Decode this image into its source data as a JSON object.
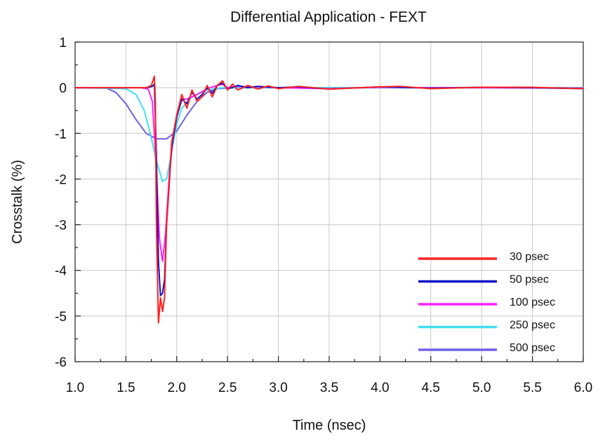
{
  "chart_data": {
    "type": "line",
    "title": "Differential Application - FEXT",
    "xlabel": "Time (nsec)",
    "ylabel": "Crosstalk (%)",
    "xlim": [
      1.0,
      6.0
    ],
    "ylim": [
      -6,
      1
    ],
    "x_ticks": [
      1.0,
      1.5,
      2.0,
      2.5,
      3.0,
      3.5,
      4.0,
      4.5,
      5.0,
      5.5,
      6.0
    ],
    "x_tick_labels": [
      "1.0",
      "1.5",
      "2.0",
      "2.5",
      "3.0",
      "3.5",
      "4.0",
      "4.5",
      "5.0",
      "5.5",
      "6.0"
    ],
    "y_ticks": [
      1,
      0,
      -1,
      -2,
      -3,
      -4,
      -5,
      -6
    ],
    "y_tick_labels": [
      "1",
      "0",
      "-1",
      "-2",
      "-3",
      "-4",
      "-5",
      "-6"
    ],
    "grid": true,
    "legend_position": "bottom-right",
    "series": [
      {
        "name": "30 psec",
        "color": "#ff2020",
        "points": [
          [
            1.0,
            0
          ],
          [
            1.7,
            0
          ],
          [
            1.75,
            0.05
          ],
          [
            1.78,
            0.25
          ],
          [
            1.79,
            -0.3
          ],
          [
            1.8,
            -3.0
          ],
          [
            1.82,
            -5.15
          ],
          [
            1.84,
            -4.6
          ],
          [
            1.86,
            -4.9
          ],
          [
            1.88,
            -4.6
          ],
          [
            1.9,
            -3.0
          ],
          [
            1.95,
            -1.2
          ],
          [
            2.0,
            -0.6
          ],
          [
            2.05,
            -0.15
          ],
          [
            2.1,
            -0.45
          ],
          [
            2.15,
            -0.05
          ],
          [
            2.2,
            -0.3
          ],
          [
            2.25,
            -0.2
          ],
          [
            2.3,
            0.05
          ],
          [
            2.35,
            -0.2
          ],
          [
            2.4,
            0.05
          ],
          [
            2.45,
            0.15
          ],
          [
            2.5,
            -0.05
          ],
          [
            2.55,
            0.08
          ],
          [
            2.6,
            -0.05
          ],
          [
            2.7,
            0.05
          ],
          [
            2.8,
            -0.03
          ],
          [
            2.9,
            0.04
          ],
          [
            3.0,
            -0.02
          ],
          [
            3.2,
            0.03
          ],
          [
            3.5,
            -0.03
          ],
          [
            4.0,
            0.02
          ],
          [
            4.2,
            0.03
          ],
          [
            4.5,
            -0.02
          ],
          [
            5.0,
            0.01
          ],
          [
            5.5,
            0.01
          ],
          [
            6.0,
            -0.02
          ]
        ]
      },
      {
        "name": "50 psec",
        "color": "#1010c8",
        "points": [
          [
            1.0,
            0
          ],
          [
            1.7,
            0
          ],
          [
            1.76,
            0.03
          ],
          [
            1.78,
            0.08
          ],
          [
            1.8,
            -1.5
          ],
          [
            1.82,
            -3.8
          ],
          [
            1.84,
            -4.55
          ],
          [
            1.86,
            -4.5
          ],
          [
            1.88,
            -4.2
          ],
          [
            1.9,
            -3.0
          ],
          [
            1.95,
            -1.3
          ],
          [
            2.0,
            -0.65
          ],
          [
            2.05,
            -0.25
          ],
          [
            2.1,
            -0.35
          ],
          [
            2.15,
            -0.1
          ],
          [
            2.2,
            -0.25
          ],
          [
            2.25,
            -0.15
          ],
          [
            2.3,
            0.0
          ],
          [
            2.35,
            -0.12
          ],
          [
            2.4,
            0.05
          ],
          [
            2.45,
            0.1
          ],
          [
            2.5,
            -0.03
          ],
          [
            2.6,
            0.05
          ],
          [
            2.7,
            0.0
          ],
          [
            2.8,
            0.03
          ],
          [
            3.0,
            0.0
          ],
          [
            3.2,
            0.02
          ],
          [
            3.5,
            -0.03
          ],
          [
            4.0,
            0.02
          ],
          [
            4.5,
            -0.01
          ],
          [
            5.0,
            0.01
          ],
          [
            5.5,
            0.0
          ],
          [
            6.0,
            -0.02
          ]
        ]
      },
      {
        "name": "100 psec",
        "color": "#ff20ff",
        "points": [
          [
            1.0,
            0
          ],
          [
            1.65,
            0
          ],
          [
            1.72,
            -0.03
          ],
          [
            1.76,
            -0.3
          ],
          [
            1.8,
            -1.8
          ],
          [
            1.83,
            -3.3
          ],
          [
            1.86,
            -3.8
          ],
          [
            1.89,
            -3.2
          ],
          [
            1.93,
            -1.8
          ],
          [
            1.97,
            -1.0
          ],
          [
            2.0,
            -0.6
          ],
          [
            2.05,
            -0.25
          ],
          [
            2.1,
            -0.25
          ],
          [
            2.2,
            -0.15
          ],
          [
            2.3,
            -0.02
          ],
          [
            2.4,
            0.05
          ],
          [
            2.45,
            0.08
          ],
          [
            2.5,
            0.0
          ],
          [
            2.6,
            0.03
          ],
          [
            2.8,
            0.02
          ],
          [
            3.0,
            0.0
          ],
          [
            3.5,
            -0.02
          ],
          [
            4.0,
            0.01
          ],
          [
            4.5,
            0.0
          ],
          [
            5.0,
            0.0
          ],
          [
            6.0,
            -0.01
          ]
        ]
      },
      {
        "name": "250 psec",
        "color": "#40e0f0",
        "points": [
          [
            1.0,
            0
          ],
          [
            1.5,
            -0.02
          ],
          [
            1.6,
            -0.15
          ],
          [
            1.68,
            -0.5
          ],
          [
            1.74,
            -1.0
          ],
          [
            1.8,
            -1.6
          ],
          [
            1.86,
            -2.05
          ],
          [
            1.9,
            -2.0
          ],
          [
            1.95,
            -1.4
          ],
          [
            2.0,
            -0.8
          ],
          [
            2.05,
            -0.45
          ],
          [
            2.15,
            -0.2
          ],
          [
            2.3,
            -0.05
          ],
          [
            2.45,
            0.0
          ],
          [
            2.6,
            0.0
          ],
          [
            3.0,
            0.0
          ],
          [
            4.0,
            0.0
          ],
          [
            5.0,
            0.0
          ],
          [
            6.0,
            0.0
          ]
        ]
      },
      {
        "name": "500 psec",
        "color": "#7060e8",
        "points": [
          [
            1.0,
            0
          ],
          [
            1.3,
            0
          ],
          [
            1.4,
            -0.1
          ],
          [
            1.5,
            -0.35
          ],
          [
            1.6,
            -0.7
          ],
          [
            1.7,
            -1.0
          ],
          [
            1.8,
            -1.12
          ],
          [
            1.9,
            -1.12
          ],
          [
            2.0,
            -0.95
          ],
          [
            2.1,
            -0.6
          ],
          [
            2.2,
            -0.3
          ],
          [
            2.3,
            -0.1
          ],
          [
            2.4,
            -0.02
          ],
          [
            2.6,
            0.0
          ],
          [
            3.0,
            0.0
          ],
          [
            4.0,
            0.0
          ],
          [
            5.0,
            0.0
          ],
          [
            6.0,
            0.0
          ]
        ]
      }
    ]
  }
}
